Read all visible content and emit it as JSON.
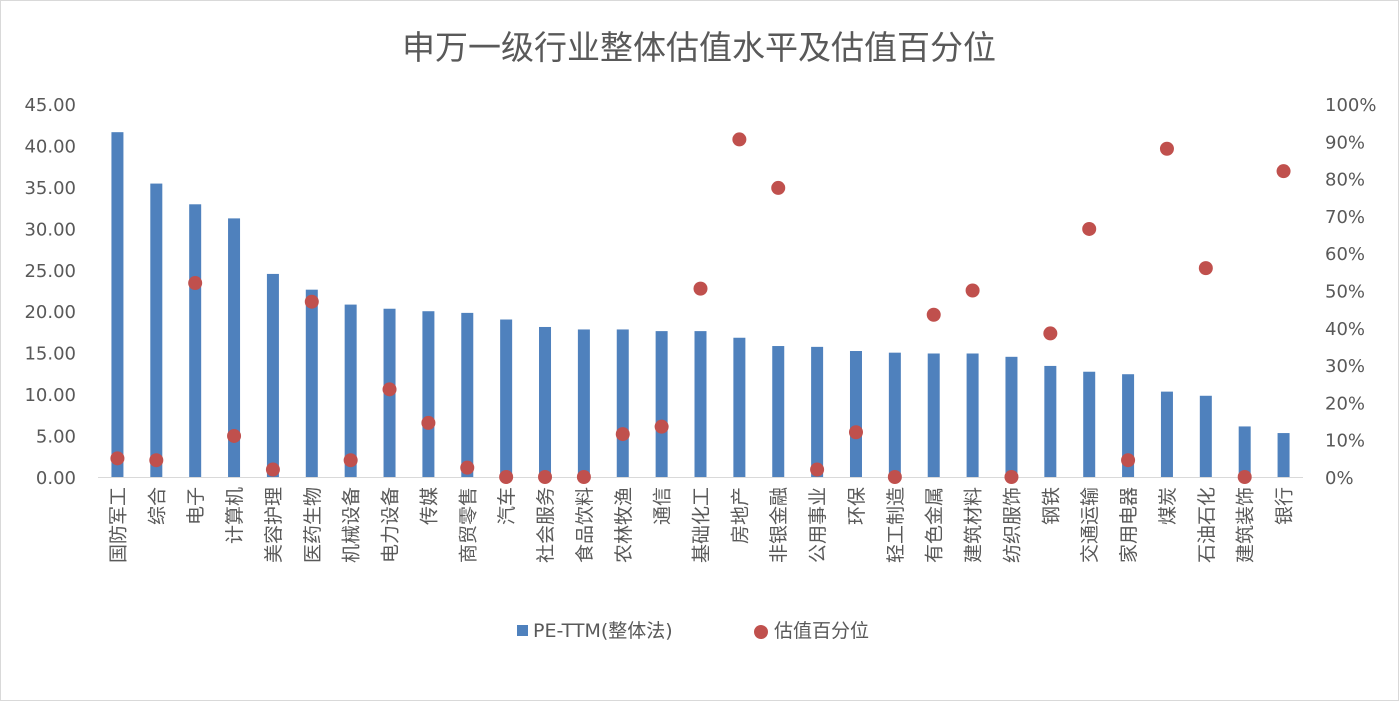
{
  "chart_data": {
    "type": "bar+scatter",
    "title": "申万一级行业整体估值水平及估值百分位",
    "categories": [
      "国防军工",
      "综合",
      "电子",
      "计算机",
      "美容护理",
      "医药生物",
      "机械设备",
      "电力设备",
      "传媒",
      "商贸零售",
      "汽车",
      "社会服务",
      "食品饮料",
      "农林牧渔",
      "通信",
      "基础化工",
      "房地产",
      "非银金融",
      "公用事业",
      "环保",
      "轻工制造",
      "有色金属",
      "建筑材料",
      "纺织服饰",
      "钢铁",
      "交通运输",
      "家用电器",
      "煤炭",
      "石油石化",
      "建筑装饰",
      "银行"
    ],
    "series": [
      {
        "name": "PE-TTM(整体法)",
        "type": "bar",
        "axis": "left",
        "color": "#4f81bd",
        "values": [
          41.6,
          35.4,
          32.9,
          31.2,
          24.5,
          22.6,
          20.8,
          20.3,
          20.0,
          19.8,
          19.0,
          18.1,
          17.8,
          17.8,
          17.6,
          17.6,
          16.8,
          15.8,
          15.7,
          15.2,
          15.0,
          14.9,
          14.9,
          14.5,
          13.4,
          12.7,
          12.4,
          10.3,
          9.8,
          6.1,
          5.3
        ]
      },
      {
        "name": "估值百分位",
        "type": "scatter",
        "axis": "right",
        "color": "#c0504d",
        "values": [
          0.05,
          0.045,
          0.52,
          0.11,
          0.02,
          0.47,
          0.045,
          0.235,
          0.145,
          0.025,
          0.0,
          0.0,
          0.0,
          0.115,
          0.135,
          0.505,
          0.905,
          0.775,
          0.02,
          0.12,
          0.0,
          0.435,
          0.5,
          0.0,
          0.385,
          0.665,
          0.045,
          0.88,
          0.56,
          0.0,
          0.82
        ]
      }
    ],
    "y_left": {
      "min": 0,
      "max": 45,
      "step": 5,
      "tick_labels": [
        "0.00",
        "5.00",
        "10.00",
        "15.00",
        "20.00",
        "25.00",
        "30.00",
        "35.00",
        "40.00",
        "45.00"
      ]
    },
    "y_right": {
      "min": 0,
      "max": 1,
      "step": 0.1,
      "tick_labels": [
        "0%",
        "10%",
        "20%",
        "30%",
        "40%",
        "50%",
        "60%",
        "70%",
        "80%",
        "90%",
        "100%"
      ]
    },
    "legend_position": "bottom",
    "grid": false,
    "colors": {
      "bar": "#4f81bd",
      "dot": "#c0504d",
      "text": "#595959",
      "axis": "#d9d9d9"
    }
  }
}
